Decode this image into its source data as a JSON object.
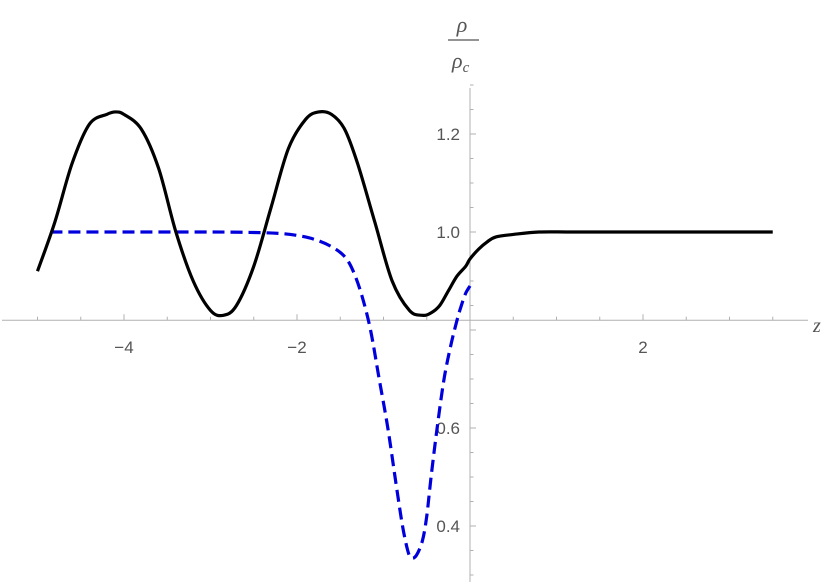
{
  "chart_data": {
    "type": "line",
    "title": "",
    "xlabel": "z",
    "ylabel": {
      "numerator": "ρ",
      "denominator": "ρ",
      "denominator_subscript": "c"
    },
    "xlim": [
      -5.0,
      3.5
    ],
    "ylim": [
      0.3,
      1.3
    ],
    "x_axis_crosses_y_at": 0.82,
    "x_ticks_major": [
      -4,
      -2,
      2
    ],
    "x_tick_labels": [
      "−4",
      "−2",
      "2"
    ],
    "y_ticks_major": [
      0.4,
      0.6,
      1.0,
      1.2
    ],
    "y_tick_labels": [
      "0.4",
      "0.6",
      "1.0",
      "1.2"
    ],
    "grid": false,
    "legend": "none",
    "series": [
      {
        "style": "solid",
        "color": "#000000",
        "x": [
          -5.0,
          -4.8,
          -4.6,
          -4.4,
          -4.2,
          -4.1,
          -4.0,
          -3.8,
          -3.6,
          -3.4,
          -3.2,
          -3.0,
          -2.85,
          -2.7,
          -2.5,
          -2.3,
          -2.1,
          -1.9,
          -1.75,
          -1.6,
          -1.45,
          -1.3,
          -1.1,
          -0.9,
          -0.7,
          -0.55,
          -0.45,
          -0.35,
          -0.25,
          -0.15,
          -0.05,
          0.0,
          0.1,
          0.2,
          0.3,
          0.5,
          0.8,
          1.2,
          2.0,
          3.0,
          3.5
        ],
        "y": [
          0.92,
          1.02,
          1.14,
          1.22,
          1.24,
          1.245,
          1.24,
          1.21,
          1.13,
          1.0,
          0.9,
          0.84,
          0.83,
          0.85,
          0.93,
          1.05,
          1.17,
          1.23,
          1.245,
          1.24,
          1.21,
          1.14,
          1.02,
          0.9,
          0.84,
          0.83,
          0.835,
          0.85,
          0.88,
          0.91,
          0.93,
          0.945,
          0.965,
          0.98,
          0.99,
          0.995,
          1.0,
          1.0,
          1.0,
          1.0,
          1.0
        ]
      },
      {
        "style": "dashed",
        "color": "#0000dd",
        "x": [
          -4.85,
          -4.0,
          -3.0,
          -2.5,
          -2.2,
          -2.0,
          -1.8,
          -1.6,
          -1.45,
          -1.35,
          -1.25,
          -1.15,
          -1.05,
          -0.95,
          -0.85,
          -0.78,
          -0.72,
          -0.68,
          -0.62,
          -0.55,
          -0.5,
          -0.45,
          -0.38,
          -0.3,
          -0.22,
          -0.15,
          -0.1,
          -0.05,
          0.0
        ],
        "y": [
          1.0,
          1.0,
          1.0,
          0.999,
          0.997,
          0.993,
          0.985,
          0.97,
          0.95,
          0.92,
          0.87,
          0.8,
          0.7,
          0.6,
          0.48,
          0.4,
          0.35,
          0.335,
          0.34,
          0.37,
          0.42,
          0.5,
          0.6,
          0.7,
          0.77,
          0.82,
          0.85,
          0.875,
          0.89
        ]
      }
    ]
  }
}
